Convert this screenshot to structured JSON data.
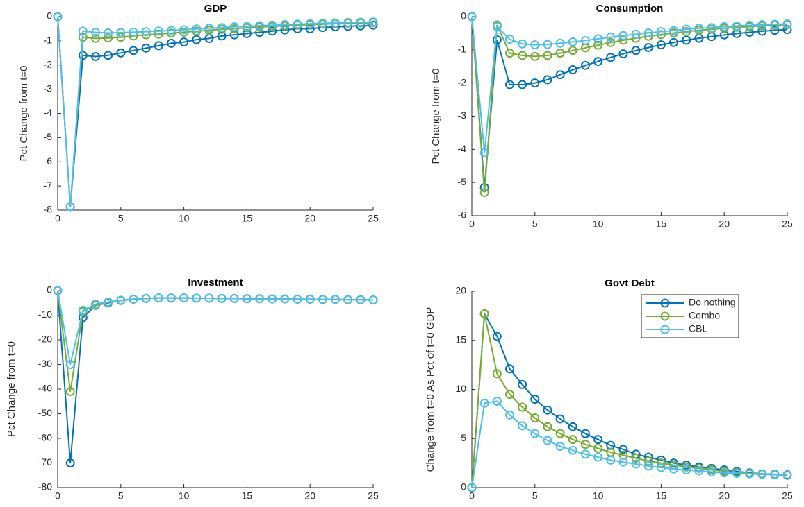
{
  "chart_data": [
    {
      "type": "line",
      "title": "GDP",
      "y_label": "Pct Change from t=0",
      "x": [
        0,
        1,
        2,
        3,
        4,
        5,
        6,
        7,
        8,
        9,
        10,
        11,
        12,
        13,
        14,
        15,
        16,
        17,
        18,
        19,
        20,
        21,
        22,
        23,
        24,
        25
      ],
      "series": [
        {
          "color": "#0072BD",
          "values": [
            0,
            -7.85,
            -1.6,
            -1.65,
            -1.6,
            -1.5,
            -1.4,
            -1.3,
            -1.2,
            -1.1,
            -1.05,
            -0.95,
            -0.9,
            -0.8,
            -0.75,
            -0.7,
            -0.65,
            -0.6,
            -0.55,
            -0.5,
            -0.5,
            -0.45,
            -0.42,
            -0.4,
            -0.38,
            -0.35
          ]
        },
        {
          "color": "#77AC30",
          "values": [
            0,
            -7.85,
            -0.85,
            -0.9,
            -0.88,
            -0.85,
            -0.8,
            -0.75,
            -0.72,
            -0.68,
            -0.64,
            -0.6,
            -0.56,
            -0.52,
            -0.5,
            -0.46,
            -0.43,
            -0.4,
            -0.38,
            -0.35,
            -0.33,
            -0.31,
            -0.29,
            -0.27,
            -0.26,
            -0.25
          ]
        },
        {
          "color": "#4DBEEE",
          "values": [
            0,
            -7.85,
            -0.6,
            -0.65,
            -0.67,
            -0.66,
            -0.64,
            -0.62,
            -0.6,
            -0.57,
            -0.54,
            -0.51,
            -0.48,
            -0.45,
            -0.42,
            -0.4,
            -0.37,
            -0.35,
            -0.33,
            -0.31,
            -0.29,
            -0.27,
            -0.26,
            -0.24,
            -0.23,
            -0.22
          ]
        }
      ],
      "xlim": [
        0,
        25
      ],
      "xticks": [
        0,
        5,
        10,
        15,
        20,
        25
      ],
      "ylim": [
        -8,
        0
      ],
      "yticks": [
        -8,
        -7,
        -6,
        -5,
        -4,
        -3,
        -2,
        -1,
        0
      ]
    },
    {
      "type": "line",
      "title": "Consumption",
      "y_label": "Pct Change from t=0",
      "x": [
        0,
        1,
        2,
        3,
        4,
        5,
        6,
        7,
        8,
        9,
        10,
        11,
        12,
        13,
        14,
        15,
        16,
        17,
        18,
        19,
        20,
        21,
        22,
        23,
        24,
        25
      ],
      "series": [
        {
          "color": "#0072BD",
          "values": [
            0,
            -5.15,
            -0.7,
            -2.05,
            -2.05,
            -2.0,
            -1.9,
            -1.75,
            -1.6,
            -1.47,
            -1.35,
            -1.23,
            -1.12,
            -1.02,
            -0.93,
            -0.85,
            -0.78,
            -0.71,
            -0.65,
            -0.6,
            -0.55,
            -0.51,
            -0.47,
            -0.44,
            -0.41,
            -0.39
          ]
        },
        {
          "color": "#77AC30",
          "values": [
            0,
            -5.3,
            -0.25,
            -1.1,
            -1.17,
            -1.2,
            -1.17,
            -1.1,
            -1.02,
            -0.94,
            -0.86,
            -0.78,
            -0.71,
            -0.65,
            -0.59,
            -0.54,
            -0.49,
            -0.45,
            -0.41,
            -0.38,
            -0.35,
            -0.32,
            -0.3,
            -0.28,
            -0.26,
            -0.24
          ]
        },
        {
          "color": "#4DBEEE",
          "values": [
            0,
            -4.1,
            -0.3,
            -0.68,
            -0.82,
            -0.85,
            -0.84,
            -0.8,
            -0.76,
            -0.72,
            -0.67,
            -0.62,
            -0.57,
            -0.53,
            -0.49,
            -0.45,
            -0.42,
            -0.38,
            -0.35,
            -0.33,
            -0.3,
            -0.28,
            -0.26,
            -0.24,
            -0.23,
            -0.22
          ]
        }
      ],
      "xlim": [
        0,
        25
      ],
      "xticks": [
        0,
        5,
        10,
        15,
        20,
        25
      ],
      "ylim": [
        -6,
        0
      ],
      "yticks": [
        -6,
        -5,
        -4,
        -3,
        -2,
        -1,
        0
      ]
    },
    {
      "type": "line",
      "title": "Investment",
      "y_label": "Pct Change from t=0",
      "x": [
        0,
        1,
        2,
        3,
        4,
        5,
        6,
        7,
        8,
        9,
        10,
        11,
        12,
        13,
        14,
        15,
        16,
        17,
        18,
        19,
        20,
        21,
        22,
        23,
        24,
        25
      ],
      "series": [
        {
          "color": "#0072BD",
          "values": [
            0,
            -70,
            -11,
            -6,
            -5,
            -4,
            -3.5,
            -3.2,
            -3.0,
            -3.0,
            -3.0,
            -3.1,
            -3.1,
            -3.2,
            -3.2,
            -3.3,
            -3.3,
            -3.4,
            -3.4,
            -3.5,
            -3.5,
            -3.6,
            -3.6,
            -3.7,
            -3.7,
            -3.8
          ]
        },
        {
          "color": "#77AC30",
          "values": [
            0,
            -41,
            -8.5,
            -6,
            -4.8,
            -4,
            -3.5,
            -3.2,
            -3.0,
            -3.0,
            -3.0,
            -3.1,
            -3.1,
            -3.2,
            -3.2,
            -3.3,
            -3.3,
            -3.4,
            -3.4,
            -3.5,
            -3.5,
            -3.6,
            -3.6,
            -3.7,
            -3.7,
            -3.8
          ]
        },
        {
          "color": "#4DBEEE",
          "values": [
            0,
            -30,
            -8,
            -5.5,
            -4.6,
            -3.9,
            -3.5,
            -3.2,
            -3.0,
            -3.0,
            -3.0,
            -3.1,
            -3.1,
            -3.2,
            -3.2,
            -3.3,
            -3.3,
            -3.4,
            -3.4,
            -3.5,
            -3.5,
            -3.6,
            -3.6,
            -3.7,
            -3.7,
            -3.8
          ]
        }
      ],
      "xlim": [
        0,
        25
      ],
      "xticks": [
        0,
        5,
        10,
        15,
        20,
        25
      ],
      "ylim": [
        -80,
        0
      ],
      "yticks": [
        -80,
        -70,
        -60,
        -50,
        -40,
        -30,
        -20,
        -10,
        0
      ]
    },
    {
      "type": "line",
      "title": "Govt Debt",
      "y_label": "Change from t=0 As Pct of t=0 GDP",
      "legend": "northeast",
      "x": [
        0,
        1,
        2,
        3,
        4,
        5,
        6,
        7,
        8,
        9,
        10,
        11,
        12,
        13,
        14,
        15,
        16,
        17,
        18,
        19,
        20,
        21,
        22,
        23,
        24,
        25
      ],
      "series": [
        {
          "name": "Do nothing",
          "color": "#0072BD",
          "values": [
            0,
            17.7,
            15.4,
            12.1,
            10.5,
            9.0,
            7.9,
            7.0,
            6.2,
            5.5,
            4.9,
            4.3,
            3.9,
            3.4,
            3.1,
            2.8,
            2.5,
            2.3,
            2.1,
            1.95,
            1.8,
            1.65,
            1.5,
            1.4,
            1.35,
            1.3
          ]
        },
        {
          "name": "Combo",
          "color": "#77AC30",
          "values": [
            0,
            17.7,
            11.6,
            9.5,
            8.2,
            7.1,
            6.2,
            5.5,
            4.9,
            4.4,
            4.0,
            3.6,
            3.3,
            3.0,
            2.7,
            2.5,
            2.3,
            2.1,
            1.95,
            1.8,
            1.65,
            1.55,
            1.45,
            1.4,
            1.32,
            1.25
          ]
        },
        {
          "name": "CBL",
          "color": "#4DBEEE",
          "values": [
            0,
            8.6,
            8.8,
            7.4,
            6.3,
            5.5,
            4.8,
            4.2,
            3.8,
            3.4,
            3.1,
            2.8,
            2.6,
            2.4,
            2.2,
            2.05,
            1.9,
            1.8,
            1.7,
            1.6,
            1.5,
            1.45,
            1.4,
            1.35,
            1.3,
            1.25
          ]
        }
      ],
      "xlim": [
        0,
        25
      ],
      "xticks": [
        0,
        5,
        10,
        15,
        20,
        25
      ],
      "ylim": [
        0,
        20
      ],
      "yticks": [
        0,
        5,
        10,
        15,
        20
      ]
    }
  ]
}
